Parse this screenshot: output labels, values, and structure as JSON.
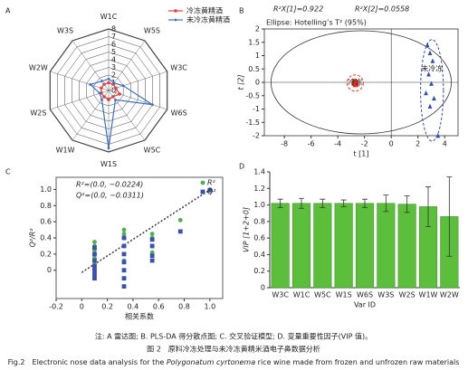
{
  "chart_data": [
    {
      "type": "radar",
      "panel": "A",
      "categories": [
        "W1C",
        "W5S",
        "W3C",
        "W6S",
        "W5C",
        "W1S",
        "W1W",
        "W2S",
        "W2W",
        "W3S"
      ],
      "rlim": [
        0,
        8
      ],
      "rticks": [
        0,
        1,
        2,
        3,
        4,
        5,
        6,
        7,
        8
      ],
      "legend": "upper right",
      "series": [
        {
          "name": "冷冻黄精酒",
          "color": "#e8403a",
          "marker": "circle",
          "values": [
            1,
            1,
            1,
            1.5,
            1,
            1.2,
            1,
            1,
            1,
            1
          ]
        },
        {
          "name": "未冷冻黄精酒",
          "color": "#3a6fc4",
          "marker": "diamond",
          "values": [
            1.5,
            1.2,
            2,
            6,
            1.5,
            7.5,
            1.5,
            1.2,
            2.5,
            1.5
          ]
        }
      ]
    },
    {
      "type": "scatter",
      "panel": "B",
      "header": [
        "R²X[1]=0.922",
        "R²X[2]=0.0558"
      ],
      "subtitle": "Ellipse: Hotelling’s T² (95%)",
      "xlabel": "t [1]",
      "ylabel": "t [2]",
      "xlim": [
        -9.5,
        5
      ],
      "xticks": [
        -8,
        -6,
        -4,
        -2,
        0,
        2,
        4
      ],
      "ylim": [
        -2,
        2
      ],
      "yticks": [
        -2,
        -1.5,
        -1,
        -0.5,
        0,
        0.5,
        1,
        1.5,
        2
      ],
      "series": [
        {
          "name": "冷冻",
          "color": "#e03020",
          "marker": "square",
          "x": [
            -2.8,
            -2.7,
            -2.6,
            -2.75,
            -2.65,
            -2.7
          ],
          "values": [
            -0.05,
            0.02,
            -0.08,
            0.05,
            -0.02,
            -0.1
          ]
        },
        {
          "name": "未冷冻",
          "color": "#3050b0",
          "marker": "triangle",
          "x": [
            2.7,
            2.9,
            3.1,
            2.8,
            3.0,
            2.6,
            3.2,
            2.9,
            3.5
          ],
          "values": [
            1.4,
            1.1,
            0.8,
            0.3,
            -0.05,
            -0.4,
            -0.6,
            -0.9,
            -2.0
          ]
        }
      ]
    },
    {
      "type": "scatter",
      "panel": "C",
      "annotations": [
        "R²=(0.0, −0.0224)",
        "Q²=(0.0, −0.0311)"
      ],
      "xlabel": "相关系数",
      "ylabel": "Q²/R²",
      "legend": "upper right",
      "xlim": [
        -0.2,
        1.1
      ],
      "xticks": [
        -0.2,
        0,
        0.2,
        0.4,
        0.6,
        0.8,
        {
          "value": 1,
          "label": "1.0"
        }
      ],
      "ylim": [
        -0.35,
        1.15
      ],
      "yticks": [
        0,
        0.2,
        0.4,
        0.6,
        0.8,
        {
          "value": 1,
          "label": "1.0"
        }
      ],
      "series": [
        {
          "name": "R²",
          "color": "#4caf50",
          "marker": "circle",
          "intercept": -0.0224,
          "x": [
            0.1,
            0.1,
            0.1,
            0.1,
            0.1,
            0.1,
            0.33,
            0.33,
            0.33,
            0.33,
            0.33,
            0.33,
            0.55,
            0.55,
            0.55,
            0.55,
            0.77,
            1.0
          ],
          "values": [
            0.35,
            0.3,
            0.25,
            0.2,
            0.15,
            0.08,
            0.5,
            0.45,
            0.4,
            0.3,
            0.2,
            0.12,
            0.45,
            0.4,
            0.3,
            0.22,
            0.62,
            1.0
          ]
        },
        {
          "name": "Q²",
          "color": "#3a4fb0",
          "marker": "square",
          "intercept": -0.0311,
          "x": [
            0.1,
            0.1,
            0.1,
            0.1,
            0.1,
            0.1,
            0.1,
            0.33,
            0.33,
            0.33,
            0.33,
            0.33,
            0.33,
            0.33,
            0.55,
            0.55,
            0.55,
            0.55,
            0.77,
            1.0
          ],
          "values": [
            0.28,
            0.2,
            0.12,
            0.05,
            0,
            -0.05,
            -0.1,
            0.4,
            0.3,
            0.2,
            0.1,
            0,
            -0.1,
            -0.2,
            0.38,
            0.3,
            0.18,
            0.12,
            0.48,
            0.99
          ]
        }
      ]
    },
    {
      "type": "bar",
      "panel": "D",
      "xlabel": "Var ID",
      "ylabel": "VIP [1+2+0]",
      "color": "#5cbf3c",
      "categories": [
        "W3C",
        "W1C",
        "W5C",
        "W1S",
        "W6S",
        "W3S",
        "W2S",
        "W1W",
        "W2W"
      ],
      "values": [
        1.02,
        1.02,
        1.02,
        1.02,
        1.02,
        1.02,
        1.01,
        0.98,
        0.86
      ],
      "errors": [
        0.05,
        0.06,
        0.05,
        0.04,
        0.05,
        0.1,
        0.1,
        0.24,
        0.48
      ],
      "ylim": [
        0,
        1.4
      ],
      "yticks": [
        0,
        0.2,
        0.4,
        0.6,
        0.8,
        {
          "value": 1,
          "label": "1.0"
        },
        1.2,
        1.4
      ]
    }
  ],
  "caption": {
    "note": "注: A 雷达图; B. PLS-DA 得分散点图; C. 交叉验证模型; D. 变量重要性因子(VIP 值)。",
    "zh": "图 2　原料冷冻处理与未冷冻黄精米酒电子鼻数据分析",
    "en": [
      "Fig.2　Electronic nose data analysis for the ",
      "Polygonatum cyrtonema",
      " rice wine made from frozen and unfrozen raw materials"
    ]
  }
}
